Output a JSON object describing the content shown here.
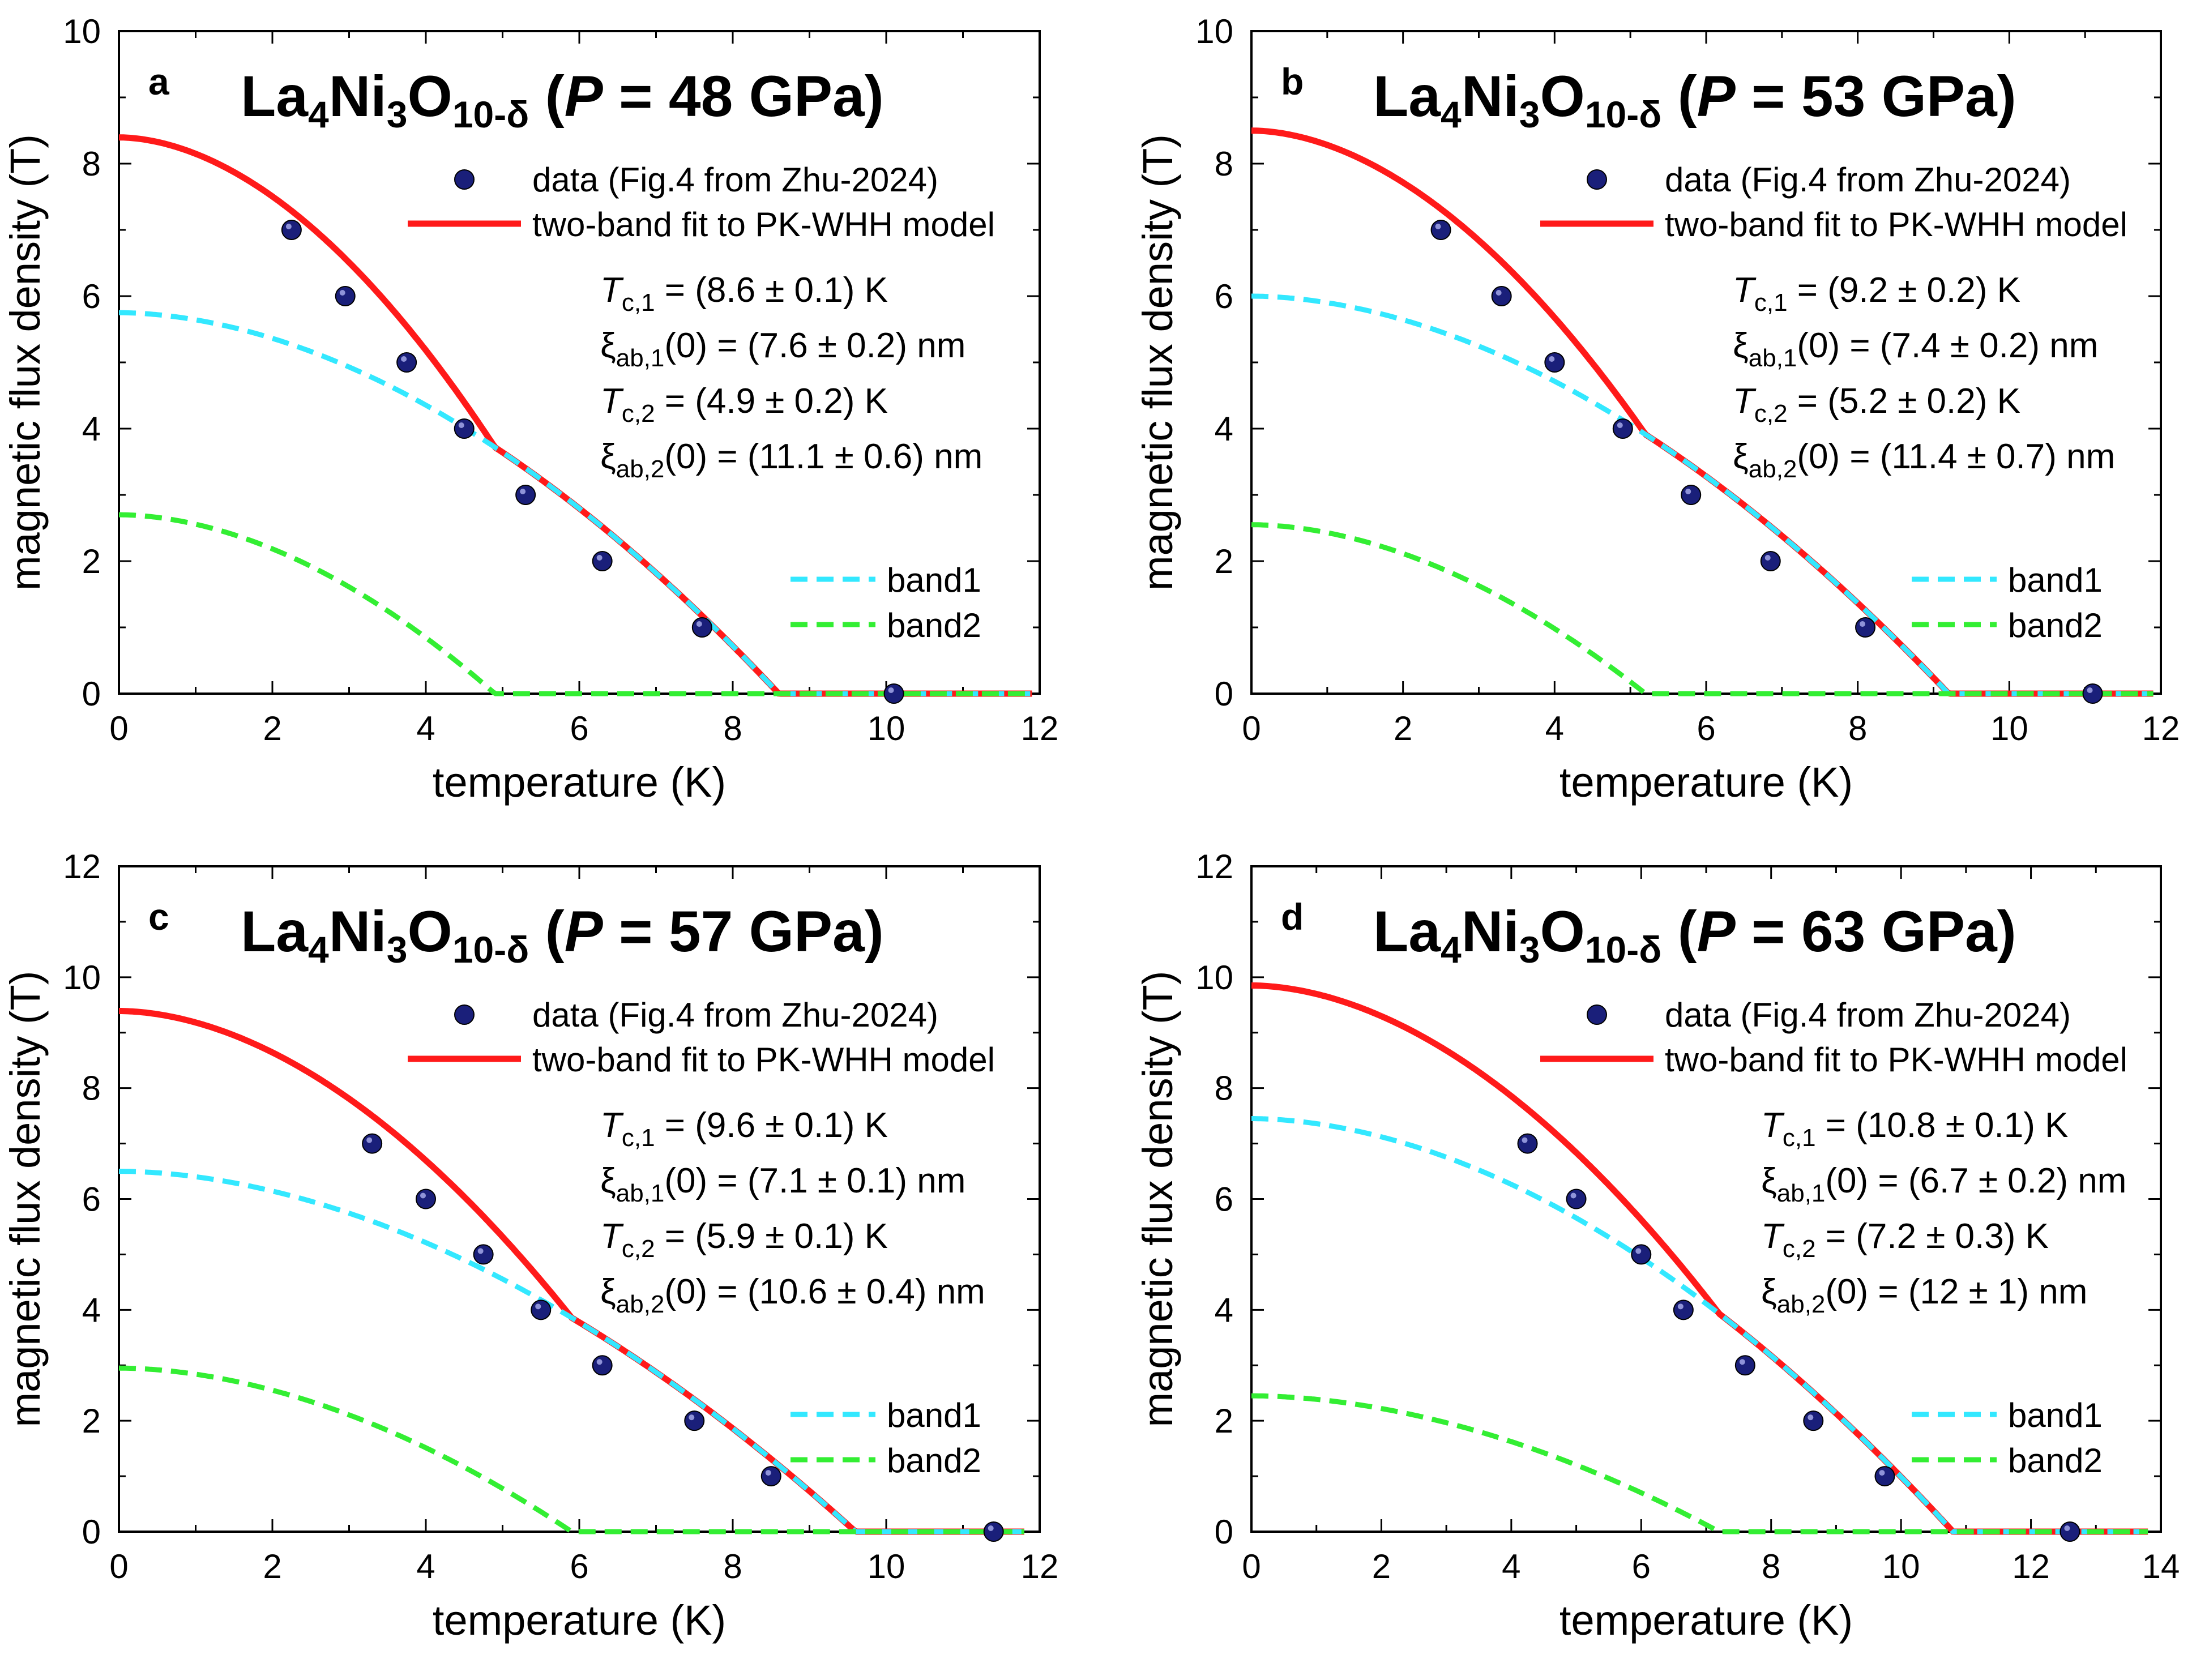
{
  "colors": {
    "data": "#1a1f7a",
    "fit": "#ff1a1a",
    "band1": "#33e8ff",
    "band2": "#33ee33",
    "axis": "#000000"
  },
  "chart_data": [
    {
      "type": "line",
      "letter": "a",
      "title": {
        "compound": "La4Ni3O10-δ",
        "pressure_label": "P",
        "pressure_value": " = 48 GPa)"
      },
      "xlabel": "temperature (K)",
      "ylabel": "magnetic flux density (T)",
      "xlim": [
        0,
        12
      ],
      "ylim": [
        0,
        10
      ],
      "xticks": [
        0,
        2,
        4,
        6,
        8,
        10,
        12
      ],
      "yticks": [
        0,
        2,
        4,
        6,
        8,
        10
      ],
      "legend": {
        "data_label": "data (Fig.4 from Zhu-2024)",
        "fit_label": "two-band fit to PK-WHH model",
        "band1_label": "band1",
        "band2_label": "band2"
      },
      "params": {
        "tc1": " = (8.6 ± 0.1) K",
        "xi1": "(0) = (7.6 ± 0.2) nm",
        "tc2": " = (4.9 ± 0.2) K",
        "xi2": "(0) = (11.1 ± 0.6) nm"
      },
      "data": {
        "T": [
          2.25,
          2.95,
          3.75,
          4.5,
          5.3,
          6.3,
          7.6,
          10.1
        ],
        "B": [
          7,
          6,
          5,
          4,
          3,
          2,
          1,
          0
        ]
      },
      "band1": {
        "Bc0": 5.75,
        "Tc": 8.6
      },
      "band2": {
        "Bc0": 2.7,
        "Tc": 4.9
      },
      "x_end": 11.9
    },
    {
      "type": "line",
      "letter": "b",
      "title": {
        "compound": "La4Ni3O10-δ",
        "pressure_label": "P",
        "pressure_value": " = 53 GPa)"
      },
      "xlabel": "temperature (K)",
      "ylabel": "magnetic flux density (T)",
      "xlim": [
        0,
        12
      ],
      "ylim": [
        0,
        10
      ],
      "xticks": [
        0,
        2,
        4,
        6,
        8,
        10,
        12
      ],
      "yticks": [
        0,
        2,
        4,
        6,
        8,
        10
      ],
      "legend": {
        "data_label": "data (Fig.4 from Zhu-2024)",
        "fit_label": "two-band fit to PK-WHH model",
        "band1_label": "band1",
        "band2_label": "band2"
      },
      "params": {
        "tc1": " = (9.2 ± 0.2) K",
        "xi1": "(0) = (7.4 ± 0.2) nm",
        "tc2": " = (5.2 ± 0.2) K",
        "xi2": "(0) = (11.4 ± 0.7) nm"
      },
      "data": {
        "T": [
          2.5,
          3.3,
          4.0,
          4.9,
          5.8,
          6.85,
          8.1,
          11.1
        ],
        "B": [
          7,
          6,
          5,
          4,
          3,
          2,
          1,
          0
        ]
      },
      "band1": {
        "Bc0": 6.0,
        "Tc": 9.2
      },
      "band2": {
        "Bc0": 2.55,
        "Tc": 5.2
      },
      "x_end": 11.9
    },
    {
      "type": "line",
      "letter": "c",
      "title": {
        "compound": "La4Ni3O10-δ",
        "pressure_label": "P",
        "pressure_value": " = 57 GPa)"
      },
      "xlabel": "temperature (K)",
      "ylabel": "magnetic flux density (T)",
      "xlim": [
        0,
        12
      ],
      "ylim": [
        0,
        12
      ],
      "xticks": [
        0,
        2,
        4,
        6,
        8,
        10,
        12
      ],
      "yticks": [
        0,
        2,
        4,
        6,
        8,
        10,
        12
      ],
      "legend": {
        "data_label": "data (Fig.4 from Zhu-2024)",
        "fit_label": "two-band fit to PK-WHH model",
        "band1_label": "band1",
        "band2_label": "band2"
      },
      "params": {
        "tc1": " = (9.6 ± 0.1) K",
        "xi1": "(0) = (7.1 ± 0.1) nm",
        "tc2": " = (5.9 ± 0.1) K",
        "xi2": "(0) = (10.6 ± 0.4) nm"
      },
      "data": {
        "T": [
          3.3,
          4.0,
          4.75,
          5.5,
          6.3,
          7.5,
          8.5,
          11.4
        ],
        "B": [
          7,
          6,
          5,
          4,
          3,
          2,
          1,
          0
        ]
      },
      "band1": {
        "Bc0": 6.5,
        "Tc": 9.6
      },
      "band2": {
        "Bc0": 2.95,
        "Tc": 5.9
      },
      "x_end": 11.8
    },
    {
      "type": "line",
      "letter": "d",
      "title": {
        "compound": "La4Ni3O10-δ",
        "pressure_label": "P",
        "pressure_value": " = 63 GPa)"
      },
      "xlabel": "temperature (K)",
      "ylabel": "magnetic flux density (T)",
      "xlim": [
        0,
        14
      ],
      "ylim": [
        0,
        12
      ],
      "xticks": [
        0,
        2,
        4,
        6,
        8,
        10,
        12,
        14
      ],
      "yticks": [
        0,
        2,
        4,
        6,
        8,
        10,
        12
      ],
      "legend": {
        "data_label": "data (Fig.4 from Zhu-2024)",
        "fit_label": "two-band fit to PK-WHH model",
        "band1_label": "band1",
        "band2_label": "band2"
      },
      "params": {
        "tc1": " = (10.8 ± 0.1) K",
        "xi1": "(0) = (6.7 ± 0.2) nm",
        "tc2": " = (7.2 ± 0.3) K",
        "xi2": "(0) = (12 ± 1) nm"
      },
      "data": {
        "T": [
          4.25,
          5.0,
          6.0,
          6.65,
          7.6,
          8.65,
          9.75,
          12.6
        ],
        "B": [
          7,
          6,
          5,
          4,
          3,
          2,
          1,
          0
        ]
      },
      "band1": {
        "Bc0": 7.45,
        "Tc": 10.8
      },
      "band2": {
        "Bc0": 2.45,
        "Tc": 7.2
      },
      "x_end": 13.8
    }
  ]
}
